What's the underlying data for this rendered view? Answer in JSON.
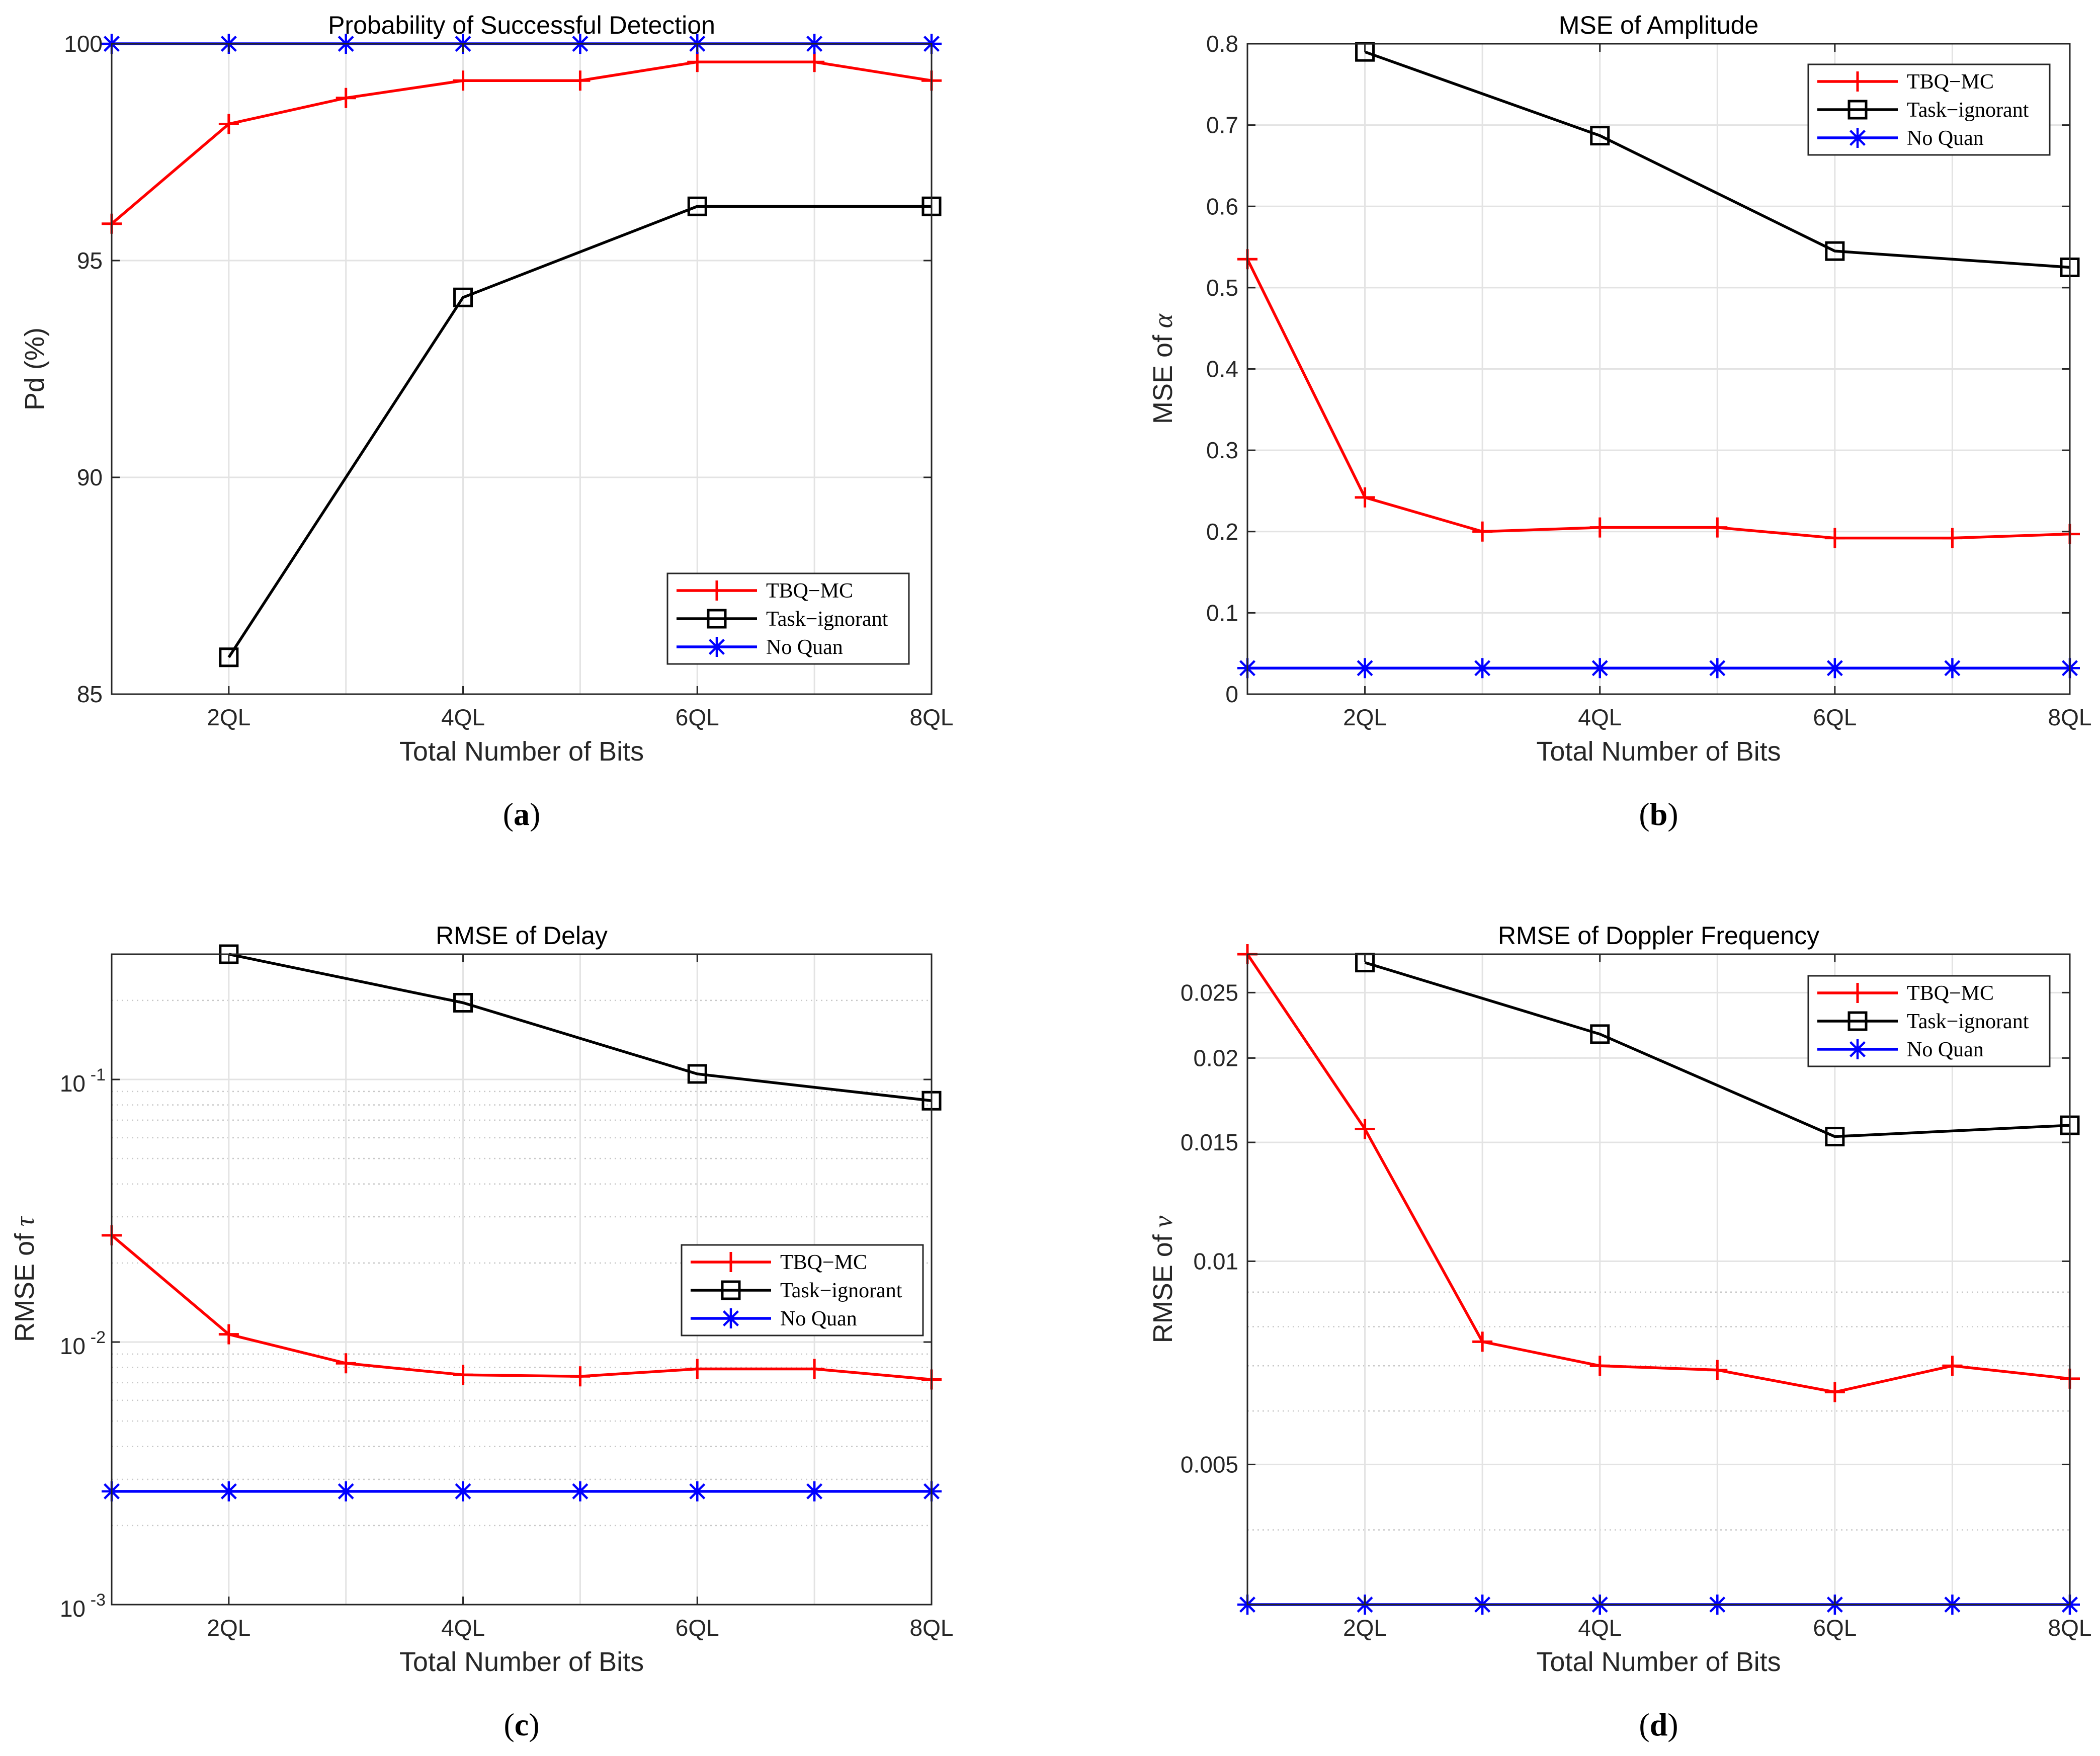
{
  "chart_data": [
    {
      "panel_id": "a",
      "caption": "a",
      "type": "line",
      "title": "Probability of Successful Detection",
      "xlabel": "Total Number of Bits",
      "ylabel": "Pd (%)",
      "yscale": "linear",
      "xlim": [
        1,
        8
      ],
      "ylim": [
        85,
        100
      ],
      "xticks": [
        2,
        4,
        6,
        8
      ],
      "xtick_labels": [
        "2QL",
        "4QL",
        "6QL",
        "8QL"
      ],
      "yticks": [
        85,
        90,
        95,
        100
      ],
      "ytick_labels": [
        "85",
        "90",
        "95",
        "100"
      ],
      "grid": true,
      "minor_grid": false,
      "legend_position": "bottom-right",
      "series": [
        {
          "name": "TBQ−MC",
          "color": "#ff0000",
          "marker": "plus",
          "x": [
            1,
            2,
            3,
            4,
            5,
            6,
            7,
            8
          ],
          "values": [
            95.85,
            98.15,
            98.75,
            99.15,
            99.15,
            99.58,
            99.58,
            99.15
          ]
        },
        {
          "name": "Task−ignorant",
          "color": "#000000",
          "marker": "square",
          "x": [
            2,
            4,
            6,
            8
          ],
          "values": [
            85.85,
            94.15,
            96.25,
            96.25
          ]
        },
        {
          "name": "No Quan",
          "color": "#0000ff",
          "marker": "asterisk",
          "x": [
            1,
            2,
            3,
            4,
            5,
            6,
            7,
            8
          ],
          "values": [
            100,
            100,
            100,
            100,
            100,
            100,
            100,
            100
          ]
        }
      ]
    },
    {
      "panel_id": "b",
      "caption": "b",
      "type": "line",
      "title": "MSE of Amplitude",
      "xlabel": "Total Number of Bits",
      "ylabel": "MSE of",
      "ylabel_symbol": "α",
      "yscale": "linear",
      "xlim": [
        1,
        8
      ],
      "ylim": [
        0,
        0.8
      ],
      "xticks": [
        2,
        4,
        6,
        8
      ],
      "xtick_labels": [
        "2QL",
        "4QL",
        "6QL",
        "8QL"
      ],
      "yticks": [
        0,
        0.1,
        0.2,
        0.3,
        0.4,
        0.5,
        0.6,
        0.7,
        0.8
      ],
      "ytick_labels": [
        "0",
        "0.1",
        "0.2",
        "0.3",
        "0.4",
        "0.5",
        "0.6",
        "0.7",
        "0.8"
      ],
      "grid": true,
      "minor_grid": false,
      "legend_position": "top-right",
      "series": [
        {
          "name": "TBQ−MC",
          "color": "#ff0000",
          "marker": "plus",
          "x": [
            1,
            2,
            3,
            4,
            5,
            6,
            7,
            8
          ],
          "values": [
            0.535,
            0.242,
            0.2,
            0.205,
            0.205,
            0.192,
            0.192,
            0.197
          ]
        },
        {
          "name": "Task−ignorant",
          "color": "#000000",
          "marker": "square",
          "x": [
            2,
            4,
            6,
            8
          ],
          "values": [
            0.79,
            0.687,
            0.545,
            0.525
          ]
        },
        {
          "name": "No Quan",
          "color": "#0000ff",
          "marker": "asterisk",
          "x": [
            1,
            2,
            3,
            4,
            5,
            6,
            7,
            8
          ],
          "values": [
            0.032,
            0.032,
            0.032,
            0.032,
            0.032,
            0.032,
            0.032,
            0.032
          ]
        }
      ]
    },
    {
      "panel_id": "c",
      "caption": "c",
      "type": "line",
      "title": "RMSE of Delay",
      "xlabel": "Total Number of Bits",
      "ylabel": "RMSE of",
      "ylabel_symbol": "τ",
      "yscale": "log",
      "xlim": [
        1,
        8
      ],
      "ylim": [
        0.001,
        0.3
      ],
      "xticks": [
        2,
        4,
        6,
        8
      ],
      "xtick_labels": [
        "2QL",
        "4QL",
        "6QL",
        "8QL"
      ],
      "yticks": [
        0.001,
        0.01,
        0.1
      ],
      "ytick_base": [
        "10",
        "10",
        "10"
      ],
      "ytick_exp": [
        "-3",
        "-2",
        "-1"
      ],
      "grid": true,
      "minor_grid": true,
      "legend_position": "right-middle",
      "series": [
        {
          "name": "TBQ−MC",
          "color": "#ff0000",
          "marker": "plus",
          "x": [
            1,
            2,
            3,
            4,
            5,
            6,
            7,
            8
          ],
          "values": [
            0.0255,
            0.0107,
            0.0083,
            0.0075,
            0.0074,
            0.0079,
            0.0079,
            0.0072
          ]
        },
        {
          "name": "Task−ignorant",
          "color": "#000000",
          "marker": "square",
          "x": [
            2,
            4,
            6,
            8
          ],
          "values": [
            0.3,
            0.196,
            0.105,
            0.083
          ]
        },
        {
          "name": "No Quan",
          "color": "#0000ff",
          "marker": "asterisk",
          "x": [
            1,
            2,
            3,
            4,
            5,
            6,
            7,
            8
          ],
          "values": [
            0.0027,
            0.0027,
            0.0027,
            0.0027,
            0.0027,
            0.0027,
            0.0027,
            0.0027
          ]
        }
      ]
    },
    {
      "panel_id": "d",
      "caption": "d",
      "type": "line",
      "title": "RMSE of Doppler Frequency",
      "xlabel": "Total Number of Bits",
      "ylabel": "RMSE of",
      "ylabel_symbol": "ν",
      "yscale": "log",
      "xlim": [
        1,
        8
      ],
      "ylim": [
        0.0031,
        0.0285
      ],
      "xticks": [
        2,
        4,
        6,
        8
      ],
      "xtick_labels": [
        "2QL",
        "4QL",
        "6QL",
        "8QL"
      ],
      "yticks": [
        0.005,
        0.01,
        0.015,
        0.02,
        0.025
      ],
      "ytick_labels": [
        "0.005",
        "0.01",
        "0.015",
        "0.02",
        "0.025"
      ],
      "grid": true,
      "minor_grid": true,
      "legend_position": "top-right",
      "series": [
        {
          "name": "TBQ−MC",
          "color": "#ff0000",
          "marker": "plus",
          "x": [
            1,
            2,
            3,
            4,
            5,
            6,
            7,
            8
          ],
          "values": [
            0.0285,
            0.0157,
            0.0076,
            0.007,
            0.0069,
            0.0064,
            0.007,
            0.0067
          ]
        },
        {
          "name": "Task−ignorant",
          "color": "#000000",
          "marker": "square",
          "x": [
            2,
            4,
            6,
            8
          ],
          "values": [
            0.0277,
            0.0217,
            0.0153,
            0.0159
          ]
        },
        {
          "name": "No Quan",
          "color": "#0000ff",
          "marker": "asterisk",
          "x": [
            1,
            2,
            3,
            4,
            5,
            6,
            7,
            8
          ],
          "values": [
            0.0031,
            0.0031,
            0.0031,
            0.0031,
            0.0031,
            0.0031,
            0.0031,
            0.0031
          ]
        }
      ]
    }
  ]
}
